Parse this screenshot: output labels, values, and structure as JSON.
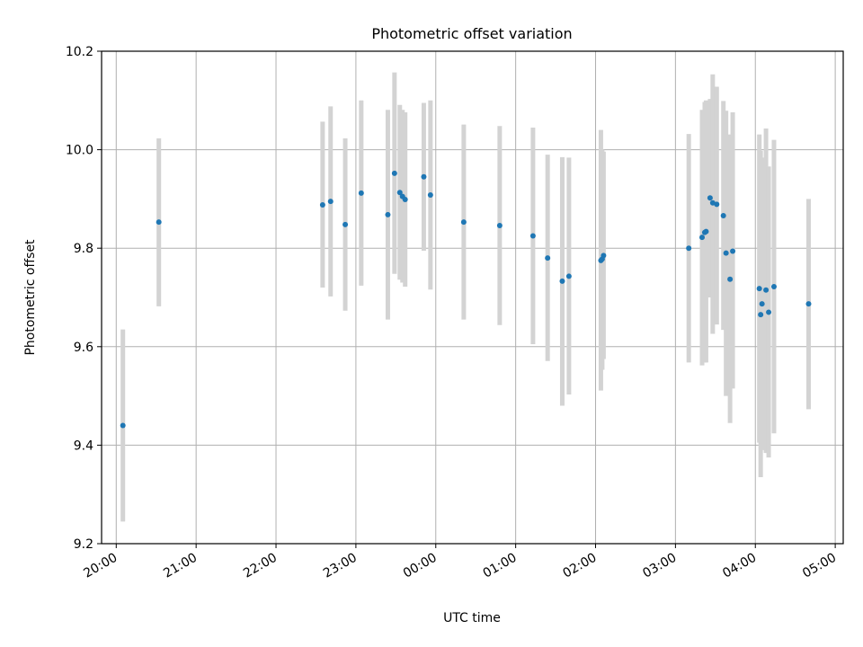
{
  "chart_data": {
    "type": "scatter",
    "title": "Photometric offset variation",
    "xlabel": "UTC time",
    "ylabel": "Photometric offset",
    "ylim": [
      9.2,
      10.2
    ],
    "xlim": [
      "19:49",
      "05:06"
    ],
    "x_ticks": [
      "20:00",
      "21:00",
      "22:00",
      "23:00",
      "00:00",
      "01:00",
      "02:00",
      "03:00",
      "04:00",
      "05:00"
    ],
    "y_ticks": [
      "9.2",
      "9.4",
      "9.6",
      "9.8",
      "10.0",
      "10.2"
    ],
    "grid": true,
    "colors": {
      "point": "#1f77b4",
      "errorbar": "#d3d3d3",
      "grid": "#b0b0b0"
    },
    "points": [
      {
        "x": "20:05",
        "y": 9.44,
        "err_low": 9.245,
        "err_high": 9.635
      },
      {
        "x": "20:32",
        "y": 9.853,
        "err_low": 9.682,
        "err_high": 10.023
      },
      {
        "x": "22:35",
        "y": 9.888,
        "err_low": 9.72,
        "err_high": 10.057
      },
      {
        "x": "22:41",
        "y": 9.895,
        "err_low": 9.702,
        "err_high": 10.088
      },
      {
        "x": "22:52",
        "y": 9.848,
        "err_low": 9.673,
        "err_high": 10.023
      },
      {
        "x": "23:04",
        "y": 9.912,
        "err_low": 9.724,
        "err_high": 10.1
      },
      {
        "x": "23:24",
        "y": 9.868,
        "err_low": 9.655,
        "err_high": 10.081
      },
      {
        "x": "23:29",
        "y": 9.952,
        "err_low": 9.748,
        "err_high": 10.157
      },
      {
        "x": "23:33",
        "y": 9.913,
        "err_low": 9.736,
        "err_high": 10.091
      },
      {
        "x": "23:35",
        "y": 9.905,
        "err_low": 9.73,
        "err_high": 10.081
      },
      {
        "x": "23:37",
        "y": 9.899,
        "err_low": 9.722,
        "err_high": 10.076
      },
      {
        "x": "23:51",
        "y": 9.945,
        "err_low": 9.795,
        "err_high": 10.095
      },
      {
        "x": "23:56",
        "y": 9.908,
        "err_low": 9.716,
        "err_high": 10.1
      },
      {
        "x": "00:21",
        "y": 9.853,
        "err_low": 9.655,
        "err_high": 10.051
      },
      {
        "x": "00:48",
        "y": 9.846,
        "err_low": 9.644,
        "err_high": 10.048
      },
      {
        "x": "01:13",
        "y": 9.825,
        "err_low": 9.605,
        "err_high": 10.045
      },
      {
        "x": "01:24",
        "y": 9.78,
        "err_low": 9.571,
        "err_high": 9.99
      },
      {
        "x": "01:35",
        "y": 9.733,
        "err_low": 9.48,
        "err_high": 9.985
      },
      {
        "x": "01:40",
        "y": 9.743,
        "err_low": 9.503,
        "err_high": 9.984
      },
      {
        "x": "02:04",
        "y": 9.775,
        "err_low": 9.511,
        "err_high": 10.04
      },
      {
        "x": "02:05",
        "y": 9.778,
        "err_low": 9.553,
        "err_high": 10.0
      },
      {
        "x": "02:06",
        "y": 9.785,
        "err_low": 9.575,
        "err_high": 9.996
      },
      {
        "x": "03:10",
        "y": 9.8,
        "err_low": 9.568,
        "err_high": 10.032
      },
      {
        "x": "03:20",
        "y": 9.822,
        "err_low": 9.562,
        "err_high": 10.081
      },
      {
        "x": "03:22",
        "y": 9.832,
        "err_low": 9.568,
        "err_high": 10.097
      },
      {
        "x": "03:23",
        "y": 9.834,
        "err_low": 9.568,
        "err_high": 10.1
      },
      {
        "x": "03:26",
        "y": 9.902,
        "err_low": 9.7,
        "err_high": 10.103
      },
      {
        "x": "03:28",
        "y": 9.892,
        "err_low": 9.626,
        "err_high": 10.153
      },
      {
        "x": "03:31",
        "y": 9.889,
        "err_low": 9.645,
        "err_high": 10.128
      },
      {
        "x": "03:36",
        "y": 9.866,
        "err_low": 9.634,
        "err_high": 10.099
      },
      {
        "x": "03:38",
        "y": 9.79,
        "err_low": 9.5,
        "err_high": 10.079
      },
      {
        "x": "03:41",
        "y": 9.737,
        "err_low": 9.445,
        "err_high": 10.031
      },
      {
        "x": "03:43",
        "y": 9.794,
        "err_low": 9.515,
        "err_high": 10.076
      },
      {
        "x": "04:03",
        "y": 9.718,
        "err_low": 9.405,
        "err_high": 10.031
      },
      {
        "x": "04:04",
        "y": 9.665,
        "err_low": 9.335,
        "err_high": 9.998
      },
      {
        "x": "04:05",
        "y": 9.687,
        "err_low": 9.39,
        "err_high": 9.984
      },
      {
        "x": "04:08",
        "y": 9.715,
        "err_low": 9.384,
        "err_high": 10.043
      },
      {
        "x": "04:10",
        "y": 9.67,
        "err_low": 9.375,
        "err_high": 9.966
      },
      {
        "x": "04:14",
        "y": 9.722,
        "err_low": 9.424,
        "err_high": 10.02
      },
      {
        "x": "04:40",
        "y": 9.687,
        "err_low": 9.473,
        "err_high": 9.9
      }
    ]
  }
}
